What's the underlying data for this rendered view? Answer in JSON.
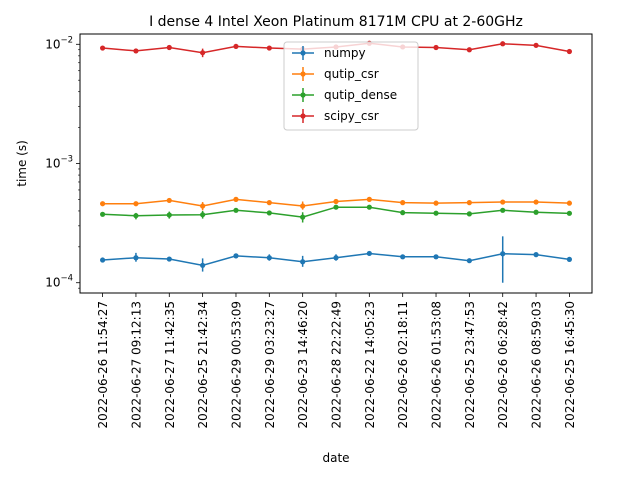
{
  "chart_data": {
    "type": "line",
    "title": "I dense 4 Intel Xeon Platinum 8171M CPU at 2-60GHz",
    "xlabel": "date",
    "ylabel": "time (s)",
    "yscale": "log",
    "ylim": [
      8.2e-05,
      0.0122
    ],
    "yticks": [
      {
        "value": 0.0001,
        "base": "10",
        "exp": "−4"
      },
      {
        "value": 0.001,
        "base": "10",
        "exp": "−3"
      },
      {
        "value": 0.01,
        "base": "10",
        "exp": "−2"
      }
    ],
    "categories": [
      "2022-06-26 11:54:27",
      "2022-06-27 09:12:13",
      "2022-06-27 11:42:35",
      "2022-06-25 21:42:34",
      "2022-06-29 00:53:09",
      "2022-06-29 03:23:27",
      "2022-06-23 14:46:20",
      "2022-06-28 22:22:49",
      "2022-06-22 14:05:23",
      "2022-06-26 02:18:11",
      "2022-06-26 01:53:08",
      "2022-06-25 23:47:53",
      "2022-06-26 06:28:42",
      "2022-06-26 08:59:03",
      "2022-06-25 16:45:30"
    ],
    "series": [
      {
        "name": "numpy",
        "color": "#1f77b4",
        "values": [
          0.000155,
          0.000162,
          0.000158,
          0.00014,
          0.000168,
          0.000162,
          0.00015,
          0.000162,
          0.000176,
          0.000165,
          0.000165,
          0.000153,
          0.000175,
          0.000172,
          0.000157
        ],
        "err_low": [
          0.000149,
          0.00015,
          0.000152,
          0.000124,
          0.000161,
          0.000153,
          0.000136,
          0.000153,
          0.000171,
          0.00016,
          0.000159,
          0.000149,
          0.0001,
          0.000167,
          0.000152
        ],
        "err_high": [
          0.000161,
          0.000178,
          0.000164,
          0.00016,
          0.000175,
          0.000173,
          0.000168,
          0.000173,
          0.000182,
          0.00017,
          0.000172,
          0.000158,
          0.000245,
          0.000177,
          0.000162
        ]
      },
      {
        "name": "qutip_csr",
        "color": "#ff7f0e",
        "values": [
          0.00046,
          0.00046,
          0.00049,
          0.00044,
          0.0005,
          0.00047,
          0.00044,
          0.00048,
          0.0005,
          0.00047,
          0.000465,
          0.00047,
          0.000475,
          0.000475,
          0.000465
        ],
        "err_low": [
          0.000445,
          0.000445,
          0.00047,
          0.000405,
          0.000485,
          0.000455,
          0.00041,
          0.000465,
          0.000485,
          0.000455,
          0.00045,
          0.000455,
          0.00046,
          0.00046,
          0.00045
        ],
        "err_high": [
          0.000475,
          0.000475,
          0.00051,
          0.000475,
          0.000515,
          0.000485,
          0.00048,
          0.000495,
          0.000515,
          0.000485,
          0.00048,
          0.000485,
          0.00049,
          0.00049,
          0.00048
        ]
      },
      {
        "name": "qutip_dense",
        "color": "#2ca02c",
        "values": [
          0.000375,
          0.000365,
          0.00037,
          0.000372,
          0.000405,
          0.000385,
          0.000355,
          0.00043,
          0.00043,
          0.000387,
          0.000383,
          0.000378,
          0.000405,
          0.00039,
          0.000382
        ],
        "err_low": [
          0.000365,
          0.00034,
          0.000345,
          0.000345,
          0.000392,
          0.000373,
          0.00032,
          0.000418,
          0.000418,
          0.000376,
          0.000372,
          0.000367,
          0.000392,
          0.000378,
          0.00037
        ],
        "err_high": [
          0.000385,
          0.000385,
          0.000395,
          0.0004,
          0.000418,
          0.000397,
          0.00039,
          0.000442,
          0.000442,
          0.000398,
          0.000394,
          0.000389,
          0.000418,
          0.000402,
          0.000394
        ]
      },
      {
        "name": "scipy_csr",
        "color": "#d62728",
        "values": [
          0.0093,
          0.0088,
          0.0094,
          0.0085,
          0.0096,
          0.0093,
          0.0091,
          0.0095,
          0.0102,
          0.0095,
          0.0094,
          0.009,
          0.0101,
          0.0098,
          0.0087
        ],
        "err_low": [
          0.0091,
          0.0085,
          0.0091,
          0.0078,
          0.0093,
          0.009,
          0.0088,
          0.0092,
          0.0099,
          0.0092,
          0.0091,
          0.0087,
          0.0098,
          0.0095,
          0.0084
        ],
        "err_high": [
          0.0095,
          0.0091,
          0.0097,
          0.0092,
          0.0099,
          0.0096,
          0.0094,
          0.0098,
          0.0105,
          0.0098,
          0.0097,
          0.0093,
          0.0104,
          0.0101,
          0.009
        ]
      }
    ],
    "legend": {
      "placement": "top-center"
    },
    "grid": false
  }
}
